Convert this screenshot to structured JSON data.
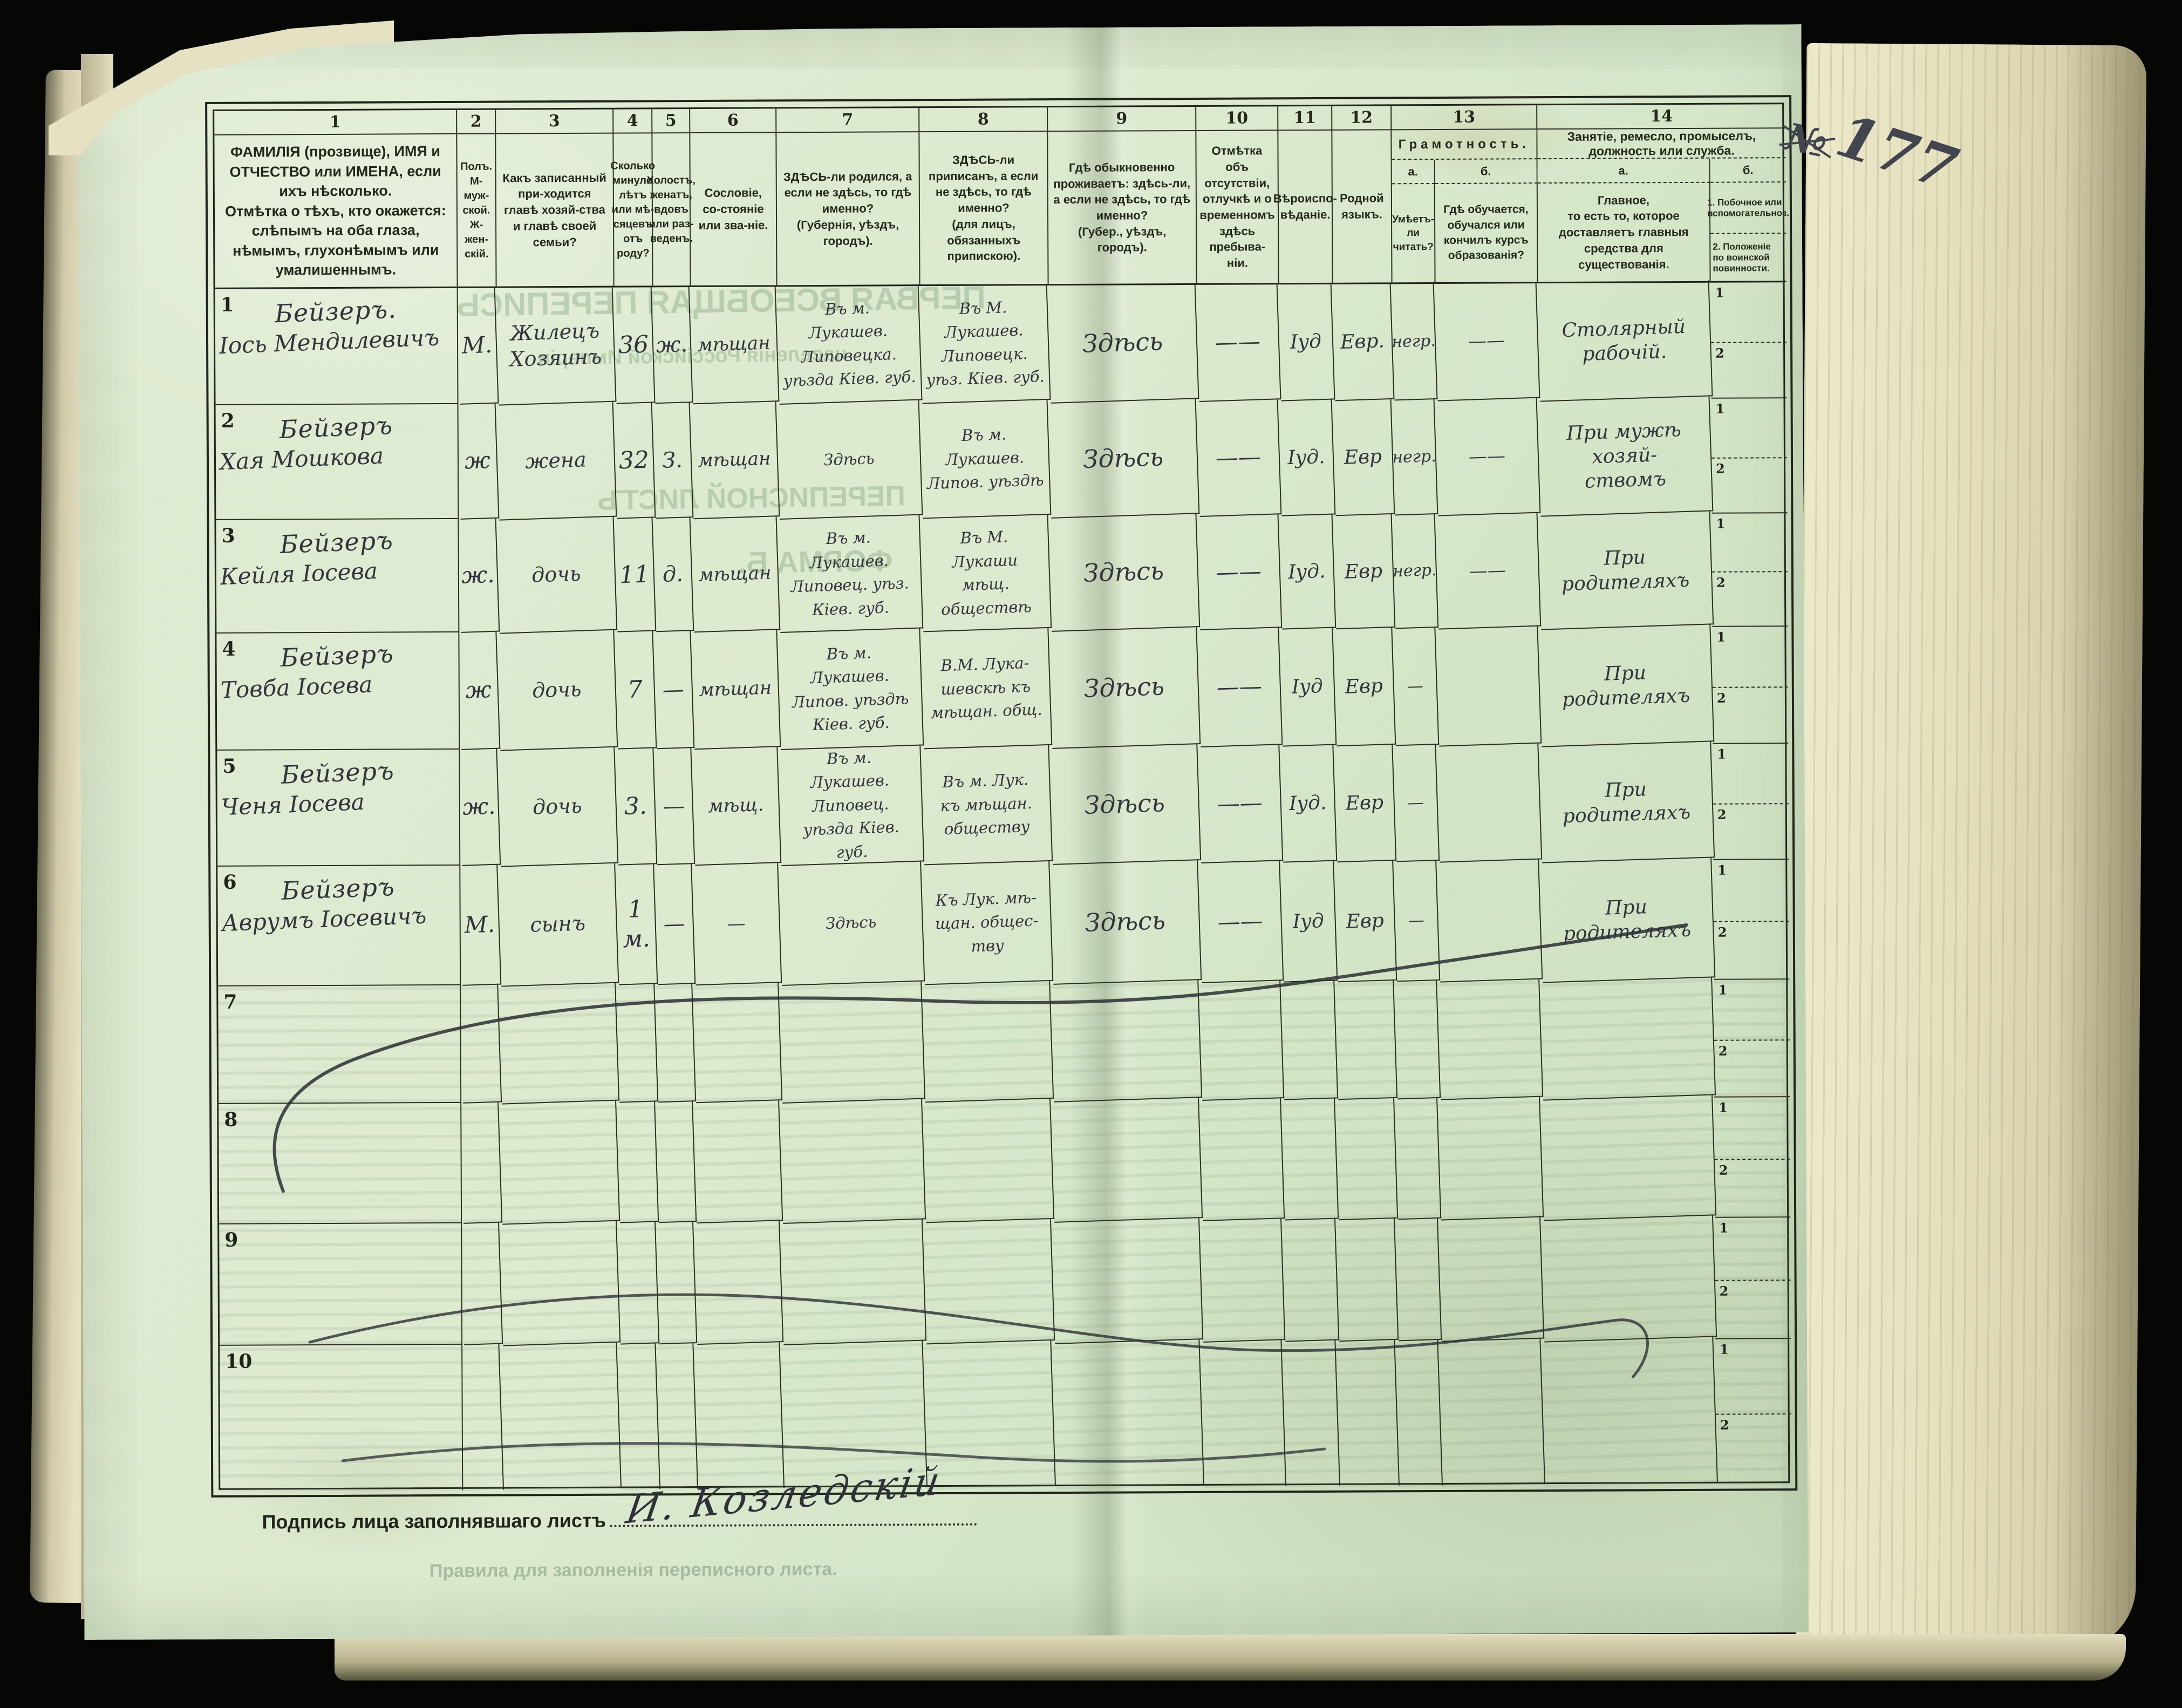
{
  "page": {
    "number": "177",
    "number_prefix": "№"
  },
  "signature": {
    "label": "Подпись лица заполнявшаго листъ",
    "name": "И. Козледскій"
  },
  "ghosts": {
    "title1": "ПЕРВАЯ ВСЕОБЩАЯ ПЕРЕПИСЬ",
    "title2": "населенія Россійской Имперіи",
    "title3": "ПЕРЕПИСНОЙ ЛИСТЪ",
    "title4": "ФОРМА Б.",
    "rules": "Правила для заполненія переписного листа."
  },
  "table": {
    "row_subcells": [
      "1",
      "2"
    ],
    "columns": [
      {
        "num": "1",
        "header": "ФАМИЛІЯ (прозвище), ИМЯ и ОТЧЕСТВО или ИМЕНА, если ихъ нѣсколько.\nОтмѣтка о тѣхъ, кто окажется: слѣпымъ на оба глаза, нѣмымъ, глухонѣмымъ или умалишеннымъ."
      },
      {
        "num": "2",
        "header": "Полъ.\nМ-муж-ской.\nЖ-жен-скій."
      },
      {
        "num": "3",
        "header": "Какъ записанный при-ходится главѣ хозяй-ства и главѣ своей семьи?"
      },
      {
        "num": "4",
        "header": "Сколько минуло лѣтъ или мѣ-сяцевъ отъ роду?"
      },
      {
        "num": "5",
        "header": "Холостъ, женатъ, вдовъ или раз-веденъ."
      },
      {
        "num": "6",
        "header": "Сословіе, со-стояніе или зва-ніе."
      },
      {
        "num": "7",
        "header": "ЗДѢСЬ-ли родился, а если не здѣсь, то гдѣ именно?\n(Губернія, уѣздъ, городъ)."
      },
      {
        "num": "8",
        "header": "ЗДѢСЬ-ли приписанъ, а если не здѣсь, то гдѣ именно?\n(для лицъ, обязанныхъ припискою)."
      },
      {
        "num": "9",
        "header": "Гдѣ обыкновенно проживаетъ: здѣсь-ли, а если не здѣсь, то гдѣ именно?\n(Губер., уѣздъ, городъ)."
      },
      {
        "num": "10",
        "header": "Отмѣтка объ отсутствіи, отлучкѣ и о временномъ здѣсь пребыва-ніи."
      },
      {
        "num": "11",
        "header": "Вѣроиспо-вѣданіе."
      },
      {
        "num": "12",
        "header": "Родной языкъ."
      },
      {
        "num": "13",
        "group": "Грамотность.",
        "sub_a": "а.",
        "sub_b": "б.",
        "a": "Умѣетъ-ли читать?",
        "b": "Гдѣ обучается, обучался или кончилъ курсъ образованія?"
      },
      {
        "num": "14",
        "group": "Занятіе, ремесло, промыселъ, должность или служба.",
        "sub_a": "а.",
        "sub_b": "б.",
        "a": "Главное,\nто есть то, которое доставляетъ главныя средства для существованія.",
        "b1": "1. Побочное или вспомогательноз.",
        "b2": "2. Положеніе по воинской повинности."
      }
    ],
    "rows": [
      {
        "num": "1",
        "surname": "Бейзеръ.",
        "name": "Іось Мендилевичъ",
        "sex": "М.",
        "relation": "Жилецъ\nХозяинъ",
        "age": "36",
        "marital": "ж.",
        "estate": "мѣщан",
        "born": "Въ м.\nЛукашев.\nЛиповецка.\nуѣзда Кіев. губ.",
        "registered": "Въ М.\nЛукашев.\nЛиповецк.\nуѣз. Кіев. губ.",
        "residence": "Здѣсь",
        "absence": "——",
        "religion": "Іуд",
        "language": "Евр.",
        "literacy_read": "негр.",
        "literacy_school": "——",
        "occupation": "Столярный\nрабочій."
      },
      {
        "num": "2",
        "surname": "Бейзеръ",
        "name": "Хая Мошкова",
        "sex": "ж",
        "relation": "жена",
        "age": "32",
        "marital": "З.",
        "estate": "мѣщан",
        "born": "Здѣсь",
        "registered": "Въ м.\nЛукашев.\nЛипов. уѣздѣ",
        "residence": "Здѣсь",
        "absence": "——",
        "religion": "Іуд.",
        "language": "Евр",
        "literacy_read": "негр.",
        "literacy_school": "——",
        "occupation": "При мужѣ хозяй-\nствомъ"
      },
      {
        "num": "3",
        "surname": "Бейзеръ",
        "name": "Кейля Іосева",
        "sex": "ж.",
        "relation": "дочь",
        "age": "11",
        "marital": "д.",
        "estate": "мѣщан",
        "born": "Въ м.\nЛукашев.\nЛиповец. уѣз.\nКіев. губ.",
        "registered": "Въ М.\nЛукаши\nмѣщ. обществѣ",
        "residence": "Здѣсь",
        "absence": "——",
        "religion": "Іуд.",
        "language": "Евр",
        "literacy_read": "негр.",
        "literacy_school": "——",
        "occupation": "При родителяхъ"
      },
      {
        "num": "4",
        "surname": "Бейзеръ",
        "name": "Товба Іосева",
        "sex": "ж",
        "relation": "дочь",
        "age": "7",
        "marital": "—",
        "estate": "мѣщан",
        "born": "Въ м.\nЛукашев.\nЛипов. уѣздѣ\nКіев. губ.",
        "registered": "В.М. Лука-\nшевскѣ къ\nмѣщан. общ.",
        "residence": "Здѣсь",
        "absence": "——",
        "religion": "Іуд",
        "language": "Евр",
        "literacy_read": "—",
        "literacy_school": "",
        "occupation": "При родителяхъ"
      },
      {
        "num": "5",
        "surname": "Бейзеръ",
        "name": "Ченя Іосева",
        "sex": "ж.",
        "relation": "дочь",
        "age": "3.",
        "marital": "—",
        "estate": "мѣщ.",
        "born": "Въ м.\nЛукашев.\nЛиповец.\nуѣзда Кіев.\nгуб.",
        "registered": "Въ м. Лук.\nкъ мѣщан.\nобществу",
        "residence": "Здѣсь",
        "absence": "——",
        "religion": "Іуд.",
        "language": "Евр",
        "literacy_read": "—",
        "literacy_school": "",
        "occupation": "При родителяхъ"
      },
      {
        "num": "6",
        "surname": "Бейзеръ",
        "name": "Аврумъ Іосевичъ",
        "sex": "М.",
        "relation": "сынъ",
        "age": "1 м.",
        "marital": "—",
        "estate": "—",
        "born": "Здѣсь",
        "registered": "Къ Лук. мѣ-\nщан. общес-\nтву",
        "residence": "Здѣсь",
        "absence": "——",
        "religion": "Іуд",
        "language": "Евр",
        "literacy_read": "—",
        "literacy_school": "",
        "occupation": "При родителяхъ"
      },
      {
        "num": "7"
      },
      {
        "num": "8"
      },
      {
        "num": "9"
      },
      {
        "num": "10"
      }
    ]
  }
}
